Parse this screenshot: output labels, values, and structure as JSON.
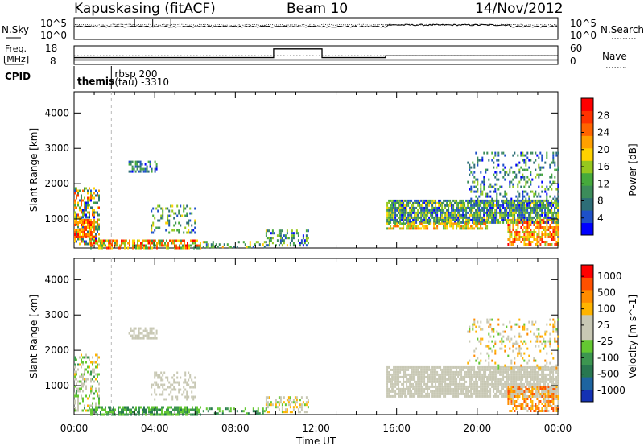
{
  "header": {
    "station": "Kapuskasing (fitACF)",
    "beam": "Beam 10",
    "date": "14/Nov/2012"
  },
  "noise_panel": {
    "left_label": "N.Sky",
    "left_ticks": [
      "10^5",
      "10^0"
    ],
    "right_label": "N.Search",
    "right_ticks": [
      "10^5",
      "10^0"
    ]
  },
  "freq_panel": {
    "left_label_line1": "Freq.",
    "left_label_line2": "[MHz]",
    "left_ticks": [
      "18",
      "8"
    ],
    "right_label": "Nave",
    "right_ticks": [
      "60",
      "0"
    ],
    "freq_steps": [
      {
        "start_h": 0.0,
        "end_h": 15.45,
        "mhz": 10.4
      },
      {
        "start_h": 15.45,
        "end_h": 21.6,
        "mhz": 10.4
      },
      {
        "start_h": 21.6,
        "end_h": 24.0,
        "mhz": 10.4
      }
    ],
    "nave_steps": [
      {
        "start_h": 0.0,
        "end_h": 9.9,
        "value": 22
      },
      {
        "start_h": 9.9,
        "end_h": 12.3,
        "value": 50
      },
      {
        "start_h": 12.3,
        "end_h": 15.45,
        "value": 22
      },
      {
        "start_h": 15.45,
        "end_h": 24.0,
        "value": 28
      }
    ]
  },
  "cpid": {
    "label": "CPID",
    "segments": [
      {
        "start_h": 0.0,
        "name": "themis",
        "extra": ""
      },
      {
        "start_h": 1.85,
        "name": "rbsp 200",
        "extra": "(tau)  -3310"
      }
    ]
  },
  "x_axis": {
    "label": "Time UT",
    "ticks": [
      "00:00",
      "04:00",
      "08:00",
      "12:00",
      "16:00",
      "20:00",
      "00:00"
    ],
    "range_h": [
      0,
      24
    ]
  },
  "chart_data": [
    {
      "type": "heatmap",
      "name": "power",
      "ylabel": "Slant Range [km]",
      "yticks": [
        1000,
        2000,
        3000,
        4000
      ],
      "ylim": [
        180,
        4600
      ],
      "xlim_h": [
        0,
        24
      ],
      "colorbar": {
        "label": "Power [dB]",
        "ticks": [
          "4",
          "8",
          "12",
          "16",
          "20",
          "24",
          "28"
        ],
        "range": [
          0,
          32
        ],
        "colors": [
          "#0000ff",
          "#1e50c8",
          "#2d6e78",
          "#3c8c5a",
          "#46aa3c",
          "#96c81e",
          "#ffd200",
          "#ffa000",
          "#ff6400",
          "#ff3200",
          "#ff0000"
        ]
      },
      "regions": [
        {
          "t": [
            0.0,
            1.2
          ],
          "r": [
            300,
            1900
          ],
          "density": 0.55,
          "level": [
            0.0,
            0.9
          ]
        },
        {
          "t": [
            0.0,
            1.0
          ],
          "r": [
            500,
            1000
          ],
          "density": 0.8,
          "level": [
            0.6,
            1.0
          ]
        },
        {
          "t": [
            0.8,
            6.3
          ],
          "r": [
            190,
            420
          ],
          "density": 0.7,
          "level": [
            0.3,
            1.0
          ]
        },
        {
          "t": [
            6.3,
            9.5
          ],
          "r": [
            190,
            380
          ],
          "density": 0.35,
          "level": [
            0.1,
            0.7
          ]
        },
        {
          "t": [
            9.5,
            11.6
          ],
          "r": [
            250,
            700
          ],
          "density": 0.4,
          "level": [
            0.0,
            0.6
          ]
        },
        {
          "t": [
            2.7,
            4.1
          ],
          "r": [
            2350,
            2650
          ],
          "density": 0.6,
          "level": [
            0.0,
            0.4
          ]
        },
        {
          "t": [
            3.8,
            6.0
          ],
          "r": [
            600,
            1400
          ],
          "density": 0.3,
          "level": [
            0.0,
            0.6
          ]
        },
        {
          "t": [
            15.5,
            24.0
          ],
          "r": [
            900,
            1550
          ],
          "density": 0.85,
          "level": [
            0.0,
            0.6
          ]
        },
        {
          "t": [
            15.5,
            20.5
          ],
          "r": [
            700,
            900
          ],
          "density": 0.7,
          "level": [
            0.4,
            0.8
          ]
        },
        {
          "t": [
            19.5,
            24.0
          ],
          "r": [
            1500,
            2900
          ],
          "density": 0.25,
          "level": [
            0.0,
            0.5
          ]
        },
        {
          "t": [
            21.5,
            24.0
          ],
          "r": [
            300,
            1000
          ],
          "density": 0.6,
          "level": [
            0.5,
            1.0
          ]
        }
      ]
    },
    {
      "type": "heatmap",
      "name": "velocity",
      "ylabel": "Slant Range [km]",
      "yticks": [
        1000,
        2000,
        3000,
        4000
      ],
      "ylim": [
        180,
        4600
      ],
      "xlim_h": [
        0,
        24
      ],
      "colorbar": {
        "label": "Velocity [m s^-1]",
        "ticks": [
          "1000",
          "500",
          "100",
          "25",
          "-25",
          "-100",
          "-500",
          "-1000"
        ],
        "range": [
          -1000,
          1000
        ],
        "colors": [
          "#1432b4",
          "#1e64a0",
          "#287850",
          "#3c9650",
          "#64c832",
          "#c8c8b4",
          "#c8c8b4",
          "#ffb400",
          "#ff8c00",
          "#ff5000",
          "#ff0000"
        ]
      },
      "regions": [
        {
          "t": [
            0.0,
            1.2
          ],
          "r": [
            300,
            1900
          ],
          "density": 0.45,
          "level": [
            0.3,
            0.7
          ]
        },
        {
          "t": [
            0.8,
            6.3
          ],
          "r": [
            190,
            420
          ],
          "density": 0.7,
          "level": [
            0.2,
            0.45
          ]
        },
        {
          "t": [
            6.3,
            9.5
          ],
          "r": [
            190,
            380
          ],
          "density": 0.35,
          "level": [
            0.2,
            0.45
          ]
        },
        {
          "t": [
            9.5,
            11.6
          ],
          "r": [
            250,
            700
          ],
          "density": 0.4,
          "level": [
            0.4,
            0.75
          ]
        },
        {
          "t": [
            2.7,
            4.1
          ],
          "r": [
            2350,
            2650
          ],
          "density": 0.6,
          "level": [
            0.5,
            0.55
          ]
        },
        {
          "t": [
            3.8,
            6.0
          ],
          "r": [
            600,
            1400
          ],
          "density": 0.3,
          "level": [
            0.45,
            0.6
          ]
        },
        {
          "t": [
            15.5,
            24.0
          ],
          "r": [
            700,
            1550
          ],
          "density": 0.85,
          "level": [
            0.5,
            0.55
          ]
        },
        {
          "t": [
            19.5,
            24.0
          ],
          "r": [
            1500,
            2900
          ],
          "density": 0.2,
          "level": [
            0.4,
            0.8
          ]
        },
        {
          "t": [
            21.5,
            24.0
          ],
          "r": [
            300,
            1000
          ],
          "density": 0.6,
          "level": [
            0.55,
            0.95
          ]
        }
      ]
    }
  ]
}
